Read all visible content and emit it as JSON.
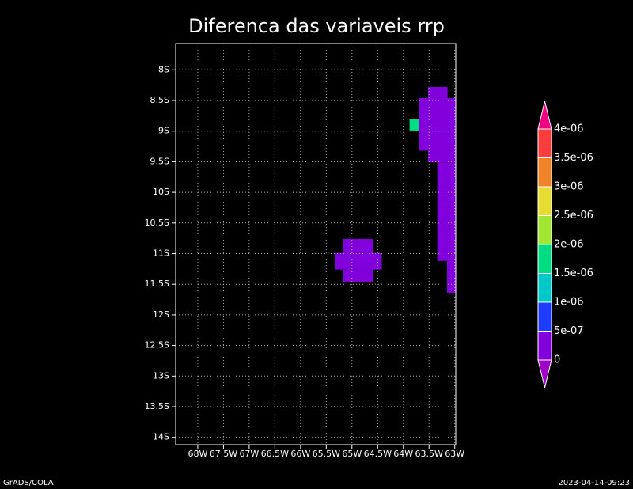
{
  "chart_data": {
    "type": "grid-map",
    "title": "Diferenca das variaveis rrp",
    "xlim": [
      -68.43,
      -62.98
    ],
    "ylim": [
      -14.12,
      -7.57
    ],
    "xticks": [
      {
        "value": -68,
        "label": "68W"
      },
      {
        "value": -67.5,
        "label": "67.5W"
      },
      {
        "value": -67,
        "label": "67W"
      },
      {
        "value": -66.5,
        "label": "66.5W"
      },
      {
        "value": -66,
        "label": "66W"
      },
      {
        "value": -65.5,
        "label": "65.5W"
      },
      {
        "value": -65,
        "label": "65W"
      },
      {
        "value": -64.5,
        "label": "64.5W"
      },
      {
        "value": -64,
        "label": "64W"
      },
      {
        "value": -63.5,
        "label": "63.5W"
      },
      {
        "value": -63,
        "label": "63W"
      }
    ],
    "yticks": [
      {
        "value": -8,
        "label": "8S"
      },
      {
        "value": -8.5,
        "label": "8.5S"
      },
      {
        "value": -9,
        "label": "9S"
      },
      {
        "value": -9.5,
        "label": "9.5S"
      },
      {
        "value": -10,
        "label": "10S"
      },
      {
        "value": -10.5,
        "label": "10.5S"
      },
      {
        "value": -11,
        "label": "11S"
      },
      {
        "value": -11.5,
        "label": "11.5S"
      },
      {
        "value": -12,
        "label": "12S"
      },
      {
        "value": -12.5,
        "label": "12.5S"
      },
      {
        "value": -13,
        "label": "13S"
      },
      {
        "value": -13.5,
        "label": "13.5S"
      },
      {
        "value": -14,
        "label": "14S"
      }
    ],
    "grid": true,
    "cells": [
      {
        "x": [
          -65.18,
          -64.58
        ],
        "y": [
          -10.99,
          -10.76
        ],
        "value": 2e-07
      },
      {
        "x": [
          -65.32,
          -64.42
        ],
        "y": [
          -11.26,
          -10.99
        ],
        "value": 2e-07
      },
      {
        "x": [
          -65.18,
          -64.58
        ],
        "y": [
          -11.46,
          -11.26
        ],
        "value": 2e-07
      },
      {
        "x": [
          -63.52,
          -63.14
        ],
        "y": [
          -8.46,
          -8.28
        ],
        "value": 2e-07
      },
      {
        "x": [
          -63.69,
          -62.98
        ],
        "y": [
          -8.8,
          -8.46
        ],
        "value": 2e-07
      },
      {
        "x": [
          -63.88,
          -63.69
        ],
        "y": [
          -8.99,
          -8.8
        ],
        "value": 1.6e-06
      },
      {
        "x": [
          -63.69,
          -62.98
        ],
        "y": [
          -9.32,
          -8.8
        ],
        "value": 2e-07
      },
      {
        "x": [
          -63.52,
          -62.98
        ],
        "y": [
          -9.51,
          -9.32
        ],
        "value": 2e-07
      },
      {
        "x": [
          -63.34,
          -62.98
        ],
        "y": [
          -10.25,
          -9.51
        ],
        "value": 2e-07
      },
      {
        "x": [
          -63.34,
          -62.98
        ],
        "y": [
          -11.12,
          -10.25
        ],
        "value": 2e-07
      },
      {
        "x": [
          -63.15,
          -62.98
        ],
        "y": [
          -11.64,
          -11.12
        ],
        "value": 2e-07
      }
    ],
    "levels": [
      0,
      {
        "value": 5e-07,
        "label": "5e-07"
      },
      {
        "value": 1e-06,
        "label": "1e-06"
      },
      {
        "value": 1.5e-06,
        "label": "1.5e-06"
      },
      {
        "value": 2e-06,
        "label": "2e-06"
      },
      {
        "value": 2.5e-06,
        "label": "2.5e-06"
      },
      {
        "value": 3e-06,
        "label": "3e-06"
      },
      {
        "value": 3.5e-06,
        "label": "3.5e-06"
      },
      {
        "value": 4e-06,
        "label": "4e-06"
      }
    ],
    "colors": [
      "#a000c8",
      "#8200dc",
      "#1e3cff",
      "#00c8c8",
      "#00dc82",
      "#a0e632",
      "#e6dc32",
      "#f08228",
      "#fa3c3c",
      "#f00082"
    ],
    "footer_left": "GrADS/COLA",
    "footer_right": "2023-04-14-09:23"
  }
}
